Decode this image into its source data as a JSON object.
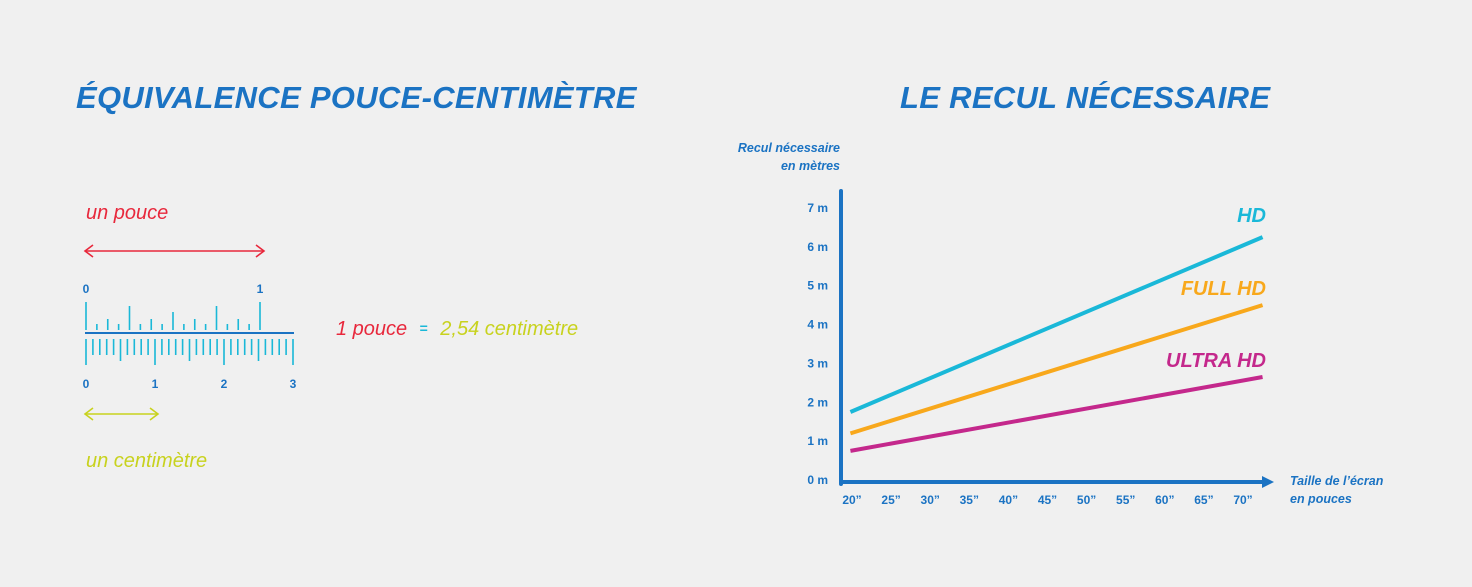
{
  "left": {
    "title": "ÉQUIVALENCE POUCE-CENTIMÈTRE",
    "inch_label": "un pouce",
    "cm_label": "un centimètre",
    "inch_scale_labels": [
      "0",
      "1"
    ],
    "cm_scale_labels": [
      "0",
      "1",
      "2",
      "3"
    ],
    "equation": {
      "lhs": "1 pouce",
      "eq": "=",
      "rhs": "2,54 centimètre"
    }
  },
  "right": {
    "title": "LE RECUL NÉCESSAIRE"
  },
  "chart_data": {
    "type": "line",
    "ylabel": [
      "Recul nécessaire",
      "en mètres"
    ],
    "xlabel": [
      "Taille de l’écran",
      "en pouces"
    ],
    "y_ticks": [
      "0 m",
      "1 m",
      "2 m",
      "3 m",
      "4 m",
      "5 m",
      "6 m",
      "7 m"
    ],
    "ylim": [
      0,
      7.5
    ],
    "x_ticks": [
      "20”",
      "25”",
      "30”",
      "35”",
      "40”",
      "45”",
      "50”",
      "55”",
      "60”",
      "65”",
      "70”"
    ],
    "x_values": [
      20,
      25,
      30,
      35,
      40,
      45,
      50,
      55,
      60,
      65,
      70
    ],
    "xlim": [
      18,
      72
    ],
    "series": [
      {
        "name": "HD",
        "color": "#1ab8d8",
        "x": [
          19.8,
          72.5
        ],
        "y": [
          1.75,
          6.25
        ]
      },
      {
        "name": "FULL HD",
        "color": "#f8a81c",
        "x": [
          19.8,
          72.5
        ],
        "y": [
          1.2,
          4.5
        ]
      },
      {
        "name": "ULTRA HD",
        "color": "#c4288c",
        "x": [
          19.8,
          72.5
        ],
        "y": [
          0.75,
          2.65
        ]
      }
    ],
    "grid": false
  }
}
